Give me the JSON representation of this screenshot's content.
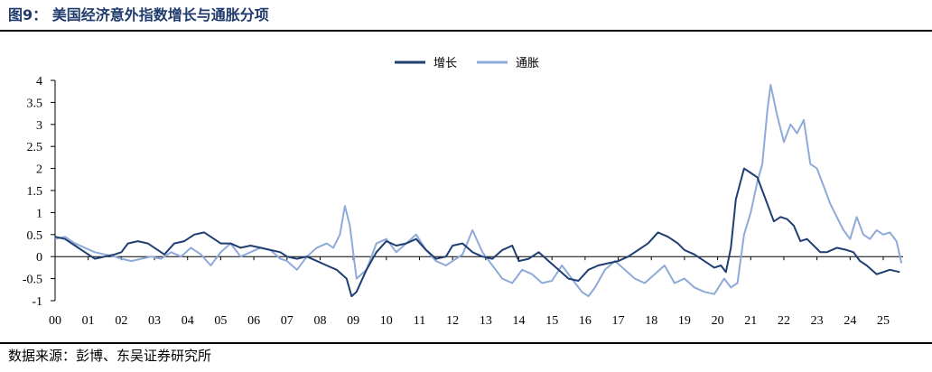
{
  "header": {
    "title": "图9：  美国经济意外指数增长与通胀分项"
  },
  "footer": {
    "source": "数据来源：彭博、东吴证券研究所"
  },
  "chart_data": {
    "type": "line",
    "title": "",
    "xlabel": "",
    "ylabel": "",
    "x_range": [
      2000.0,
      2025.6
    ],
    "xticks": [
      "00",
      "01",
      "02",
      "03",
      "04",
      "05",
      "06",
      "07",
      "08",
      "09",
      "10",
      "11",
      "12",
      "13",
      "14",
      "15",
      "16",
      "17",
      "18",
      "19",
      "20",
      "21",
      "22",
      "23",
      "24",
      "25"
    ],
    "ylim": [
      -1,
      4
    ],
    "yticks": [
      "4",
      "3.5",
      "3",
      "2.5",
      "2",
      "1.5",
      "1",
      "0.5",
      "0",
      "-0.5",
      "-1"
    ],
    "grid": false,
    "legend": "top-center",
    "colors": {
      "growth": "#1f3e72",
      "inflation": "#8eaad8"
    },
    "series": [
      {
        "name": "增长",
        "x": [
          2000.0,
          2000.3,
          2000.6,
          2000.9,
          2001.2,
          2001.5,
          2001.8,
          2002.0,
          2002.2,
          2002.5,
          2002.8,
          2003.0,
          2003.3,
          2003.6,
          2003.9,
          2004.2,
          2004.5,
          2004.8,
          2005.0,
          2005.3,
          2005.6,
          2005.9,
          2006.2,
          2006.5,
          2006.8,
          2007.0,
          2007.3,
          2007.6,
          2007.9,
          2008.2,
          2008.5,
          2008.8,
          2008.95,
          2009.1,
          2009.4,
          2009.7,
          2010.0,
          2010.3,
          2010.6,
          2010.9,
          2011.2,
          2011.5,
          2011.8,
          2012.0,
          2012.3,
          2012.6,
          2012.9,
          2013.2,
          2013.5,
          2013.8,
          2014.0,
          2014.3,
          2014.6,
          2014.9,
          2015.2,
          2015.5,
          2015.8,
          2016.1,
          2016.4,
          2016.7,
          2017.0,
          2017.3,
          2017.6,
          2017.9,
          2018.2,
          2018.5,
          2018.8,
          2019.0,
          2019.3,
          2019.6,
          2019.9,
          2020.1,
          2020.25,
          2020.4,
          2020.55,
          2020.8,
          2021.0,
          2021.2,
          2021.35,
          2021.5,
          2021.7,
          2021.9,
          2022.1,
          2022.3,
          2022.5,
          2022.7,
          2022.9,
          2023.1,
          2023.3,
          2023.6,
          2023.9,
          2024.1,
          2024.3,
          2024.5,
          2024.8,
          2025.0,
          2025.2,
          2025.5
        ],
        "values": [
          0.45,
          0.4,
          0.25,
          0.1,
          -0.05,
          0.0,
          0.05,
          0.1,
          0.3,
          0.35,
          0.3,
          0.2,
          0.05,
          0.3,
          0.35,
          0.5,
          0.55,
          0.4,
          0.3,
          0.3,
          0.2,
          0.25,
          0.2,
          0.15,
          0.1,
          0.0,
          -0.05,
          0.0,
          -0.1,
          -0.2,
          -0.3,
          -0.5,
          -0.9,
          -0.8,
          -0.3,
          0.1,
          0.35,
          0.25,
          0.3,
          0.4,
          0.15,
          -0.05,
          0.0,
          0.25,
          0.3,
          0.1,
          0.0,
          -0.05,
          0.15,
          0.25,
          -0.1,
          -0.05,
          0.1,
          -0.1,
          -0.3,
          -0.5,
          -0.55,
          -0.3,
          -0.2,
          -0.15,
          -0.1,
          0.0,
          0.15,
          0.3,
          0.55,
          0.45,
          0.3,
          0.15,
          0.05,
          -0.1,
          -0.25,
          -0.2,
          -0.35,
          0.2,
          1.3,
          2.0,
          1.9,
          1.8,
          1.5,
          1.2,
          0.8,
          0.9,
          0.85,
          0.7,
          0.35,
          0.4,
          0.25,
          0.1,
          0.1,
          0.2,
          0.15,
          0.1,
          -0.1,
          -0.2,
          -0.4,
          -0.35,
          -0.3,
          -0.35
        ]
      },
      {
        "name": "通胀",
        "x": [
          2000.0,
          2000.3,
          2000.6,
          2000.9,
          2001.2,
          2001.5,
          2001.8,
          2002.0,
          2002.3,
          2002.6,
          2002.9,
          2003.2,
          2003.5,
          2003.8,
          2004.1,
          2004.4,
          2004.7,
          2005.0,
          2005.3,
          2005.6,
          2005.9,
          2006.2,
          2006.5,
          2006.8,
          2007.0,
          2007.3,
          2007.6,
          2007.9,
          2008.2,
          2008.4,
          2008.6,
          2008.75,
          2008.9,
          2009.1,
          2009.4,
          2009.7,
          2010.0,
          2010.3,
          2010.6,
          2010.9,
          2011.2,
          2011.5,
          2011.8,
          2012.0,
          2012.3,
          2012.6,
          2012.9,
          2013.2,
          2013.5,
          2013.8,
          2014.1,
          2014.4,
          2014.7,
          2015.0,
          2015.3,
          2015.6,
          2015.9,
          2016.1,
          2016.3,
          2016.6,
          2016.9,
          2017.2,
          2017.5,
          2017.8,
          2018.1,
          2018.4,
          2018.7,
          2019.0,
          2019.3,
          2019.6,
          2019.9,
          2020.2,
          2020.4,
          2020.6,
          2020.8,
          2021.0,
          2021.2,
          2021.35,
          2021.5,
          2021.6,
          2021.8,
          2022.0,
          2022.2,
          2022.4,
          2022.6,
          2022.8,
          2023.0,
          2023.2,
          2023.4,
          2023.6,
          2023.8,
          2024.0,
          2024.2,
          2024.4,
          2024.6,
          2024.8,
          2025.0,
          2025.2,
          2025.4,
          2025.55
        ],
        "values": [
          0.4,
          0.45,
          0.3,
          0.2,
          0.1,
          0.05,
          0.0,
          -0.05,
          -0.1,
          -0.05,
          0.0,
          -0.05,
          0.1,
          0.0,
          0.2,
          0.05,
          -0.2,
          0.1,
          0.3,
          0.0,
          0.1,
          0.2,
          0.15,
          -0.05,
          -0.1,
          -0.3,
          0.0,
          0.2,
          0.3,
          0.2,
          0.5,
          1.15,
          0.7,
          -0.5,
          -0.3,
          0.3,
          0.4,
          0.1,
          0.3,
          0.5,
          0.15,
          -0.1,
          -0.2,
          -0.1,
          0.05,
          0.6,
          0.1,
          -0.2,
          -0.5,
          -0.6,
          -0.3,
          -0.4,
          -0.6,
          -0.55,
          -0.2,
          -0.5,
          -0.8,
          -0.9,
          -0.7,
          -0.3,
          -0.1,
          -0.3,
          -0.5,
          -0.6,
          -0.4,
          -0.2,
          -0.6,
          -0.5,
          -0.7,
          -0.8,
          -0.85,
          -0.5,
          -0.7,
          -0.6,
          0.5,
          1.0,
          1.7,
          2.1,
          3.3,
          3.9,
          3.2,
          2.6,
          3.0,
          2.8,
          3.1,
          2.1,
          2.0,
          1.6,
          1.2,
          0.9,
          0.6,
          0.4,
          0.9,
          0.5,
          0.4,
          0.6,
          0.5,
          0.55,
          0.35,
          -0.15
        ]
      }
    ]
  }
}
